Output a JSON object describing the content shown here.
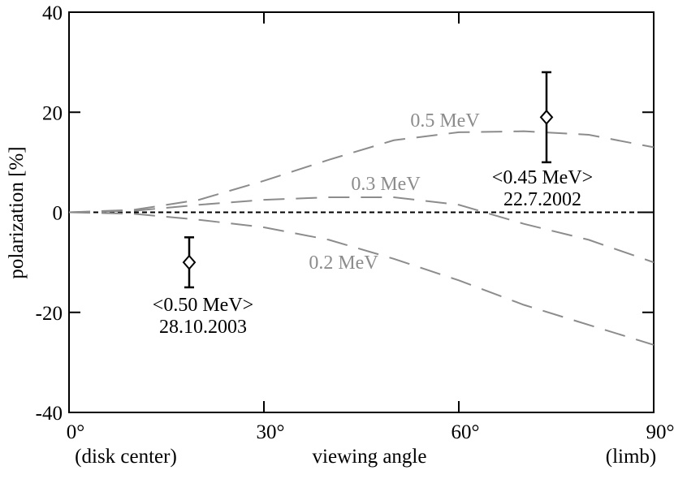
{
  "chart_data": {
    "type": "line",
    "x_label": "viewing angle",
    "y_label": "polarization [%]",
    "x": [
      0,
      10,
      20,
      30,
      40,
      50,
      60,
      70,
      80,
      90
    ],
    "series": [
      {
        "name": "0.5 MeV",
        "color": "#8c8c8c",
        "values": [
          0,
          0.5,
          2.5,
          6.3,
          10.5,
          14.4,
          16,
          16.2,
          15.5,
          13
        ]
      },
      {
        "name": "0.3 MeV",
        "color": "#8c8c8c",
        "values": [
          0,
          0.3,
          1.5,
          2.5,
          3,
          3,
          1.5,
          -2.3,
          -5.5,
          -10
        ]
      },
      {
        "name": "0.2 MeV",
        "color": "#8c8c8c",
        "values": [
          0,
          -0.3,
          -1.5,
          -3,
          -5.5,
          -9.3,
          -13.6,
          -18.5,
          -22.5,
          -26.5
        ]
      }
    ],
    "points": [
      {
        "x": 18.5,
        "y": -10,
        "err": 5,
        "label": "<0.50 MeV>",
        "date": "28.10.2003"
      },
      {
        "x": 73.5,
        "y": 19,
        "err": 9,
        "label": "<0.45 MeV>",
        "date": "22.7.2002"
      }
    ],
    "reference_line": 0,
    "xlim": [
      0,
      90
    ],
    "ylim": [
      -40,
      40
    ],
    "xticks": [
      {
        "value": 0,
        "label": "0°"
      },
      {
        "value": 30,
        "label": "30°"
      },
      {
        "value": 60,
        "label": "60°"
      },
      {
        "value": 90,
        "label": "90°"
      }
    ],
    "yticks": [
      -40,
      -20,
      0,
      20,
      40
    ],
    "x_end_labels": [
      "(disk center)",
      "(limb)"
    ]
  }
}
